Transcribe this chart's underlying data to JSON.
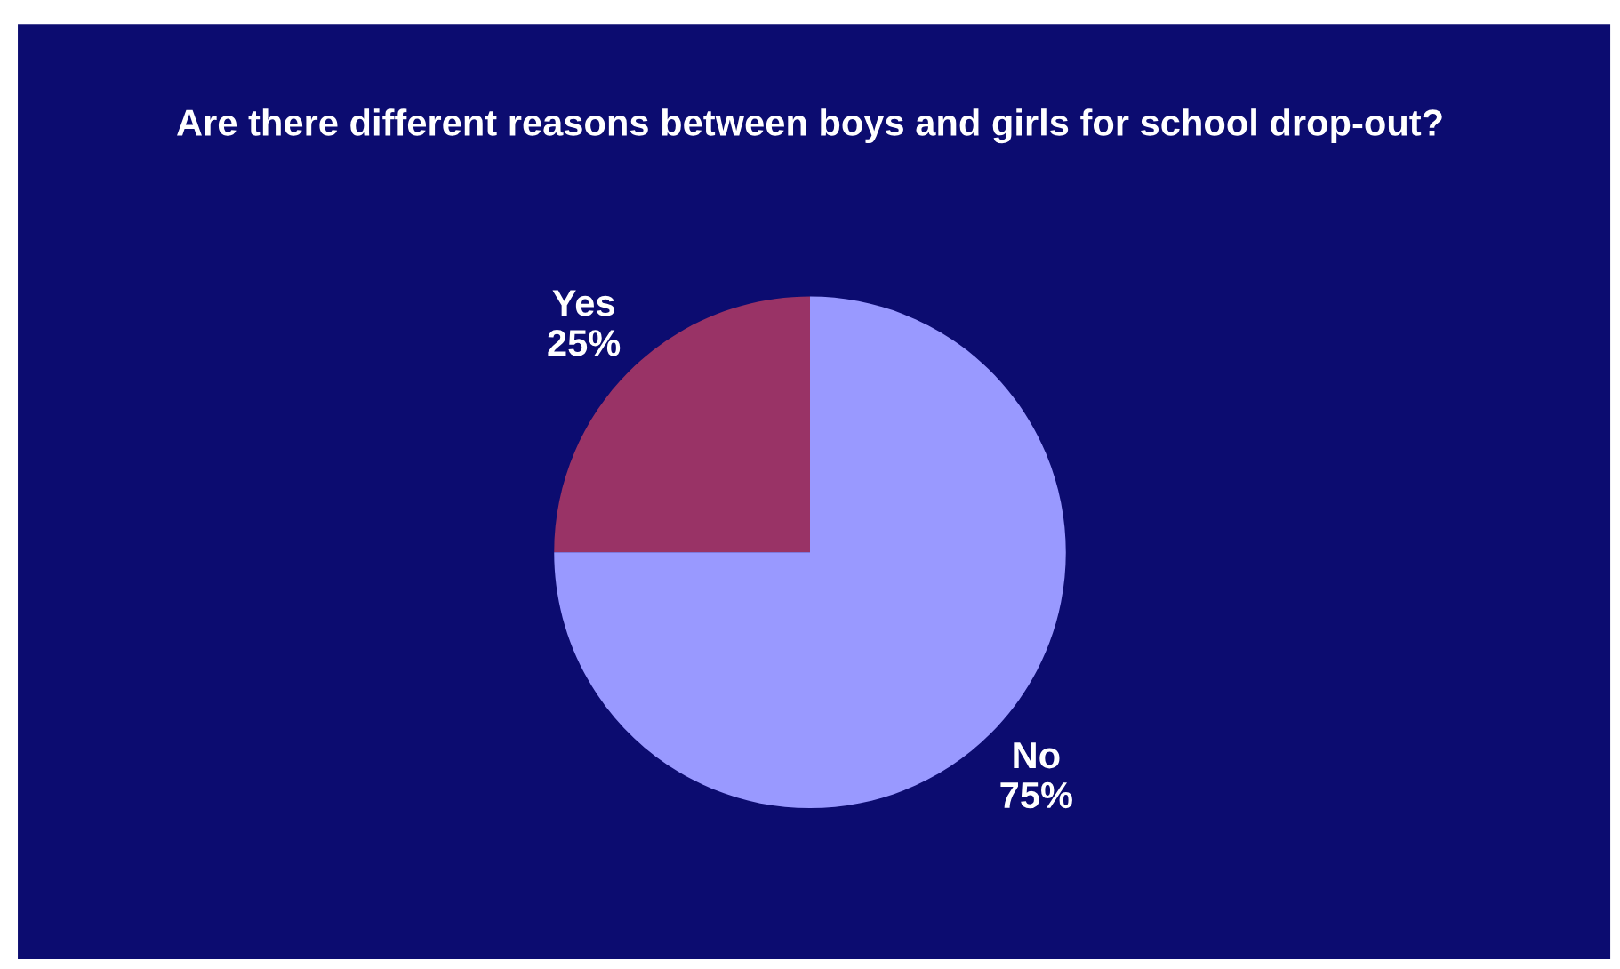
{
  "chart_data": {
    "type": "pie",
    "title": "Are there different reasons between boys and girls for school drop-out?",
    "categories": [
      "Yes",
      "No"
    ],
    "values": [
      25,
      75
    ],
    "value_labels": [
      "25%",
      "75%"
    ],
    "colors": [
      "#993366",
      "#9999ff"
    ],
    "legend": false
  }
}
